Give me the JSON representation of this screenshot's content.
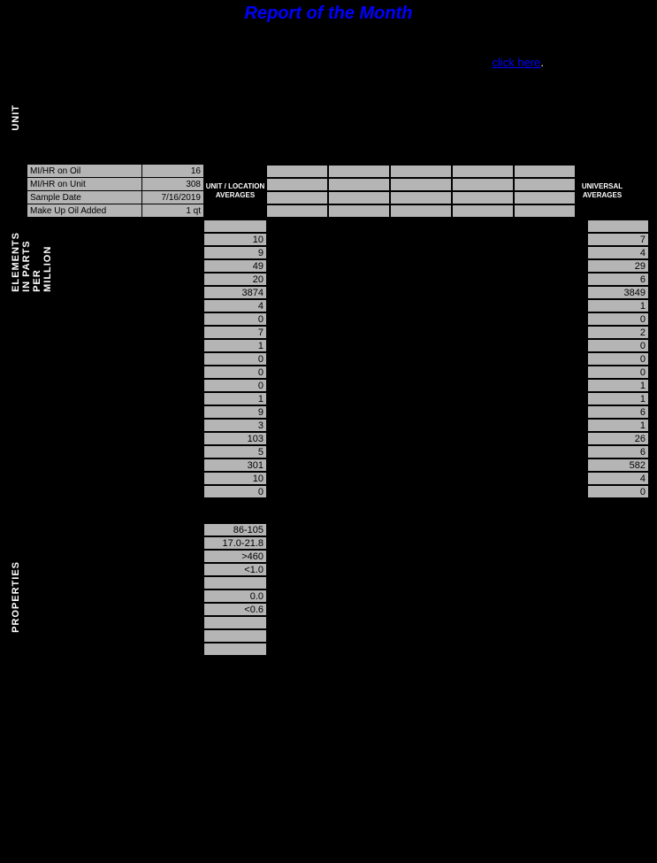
{
  "title": "Report of the Month",
  "link": {
    "text": "click here",
    "trail": "."
  },
  "vertical_labels": {
    "unit": "UNIT",
    "elements": "ELEMENTS  IN  PARTS  PER  MILLION",
    "properties": "PROPERTIES"
  },
  "header_rows": [
    {
      "label": "MI/HR on Oil",
      "value": "16"
    },
    {
      "label": "MI/HR on Unit",
      "value": "308"
    },
    {
      "label": "Sample Date",
      "value": "7/16/2019"
    },
    {
      "label": "Make Up Oil Added",
      "value": "1 qt"
    }
  ],
  "column_headers": {
    "loc": "UNIT / LOCATION AVERAGES",
    "uni": "UNIVERSAL AVERAGES"
  },
  "element_rows": [
    {
      "loc": "",
      "uni": ""
    },
    {
      "loc": "10",
      "uni": "7"
    },
    {
      "loc": "9",
      "uni": "4"
    },
    {
      "loc": "49",
      "uni": "29"
    },
    {
      "loc": "20",
      "uni": "6"
    },
    {
      "loc": "3874",
      "uni": "3849"
    },
    {
      "loc": "4",
      "uni": "1"
    },
    {
      "loc": "0",
      "uni": "0"
    },
    {
      "loc": "7",
      "uni": "2"
    },
    {
      "loc": "1",
      "uni": "0"
    },
    {
      "loc": "0",
      "uni": "0"
    },
    {
      "loc": "0",
      "uni": "0"
    },
    {
      "loc": "0",
      "uni": "1"
    },
    {
      "loc": "1",
      "uni": "1"
    },
    {
      "loc": "9",
      "uni": "6"
    },
    {
      "loc": "3",
      "uni": "1"
    },
    {
      "loc": "103",
      "uni": "26"
    },
    {
      "loc": "5",
      "uni": "6"
    },
    {
      "loc": "301",
      "uni": "582"
    },
    {
      "loc": "10",
      "uni": "4"
    },
    {
      "loc": "0",
      "uni": "0"
    }
  ],
  "property_rows": [
    {
      "loc": "86-105"
    },
    {
      "loc": "17.0-21.8"
    },
    {
      "loc": ">460"
    },
    {
      "loc": "<1.0"
    },
    {
      "loc": ""
    },
    {
      "loc": "0.0"
    },
    {
      "loc": "<0.6"
    },
    {
      "loc": ""
    },
    {
      "loc": ""
    },
    {
      "loc": ""
    }
  ],
  "colors": {
    "bg": "#000000",
    "cell": "#b5b5b5",
    "title": "#0000ff",
    "link": "#0000ff",
    "text": "#ffffff"
  }
}
